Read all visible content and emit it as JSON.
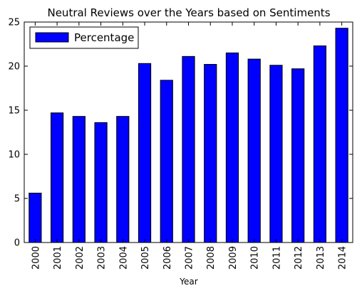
{
  "chart_data": {
    "type": "bar",
    "title": "Neutral Reviews over the Years based on Sentiments",
    "xlabel": "Year",
    "ylabel": "",
    "categories": [
      "2000",
      "2001",
      "2002",
      "2003",
      "2004",
      "2005",
      "2006",
      "2007",
      "2008",
      "2009",
      "2010",
      "2011",
      "2012",
      "2013",
      "2014"
    ],
    "series": [
      {
        "name": "Percentage",
        "color": "#0000ff",
        "values": [
          5.6,
          14.7,
          14.3,
          13.6,
          14.3,
          20.3,
          18.4,
          21.1,
          20.2,
          21.5,
          20.8,
          20.1,
          19.7,
          22.3,
          24.3
        ]
      }
    ],
    "ylim": [
      0,
      25
    ],
    "yticks": [
      "0",
      "5",
      "10",
      "15",
      "20",
      "25"
    ],
    "grid": false,
    "legend": "top-left"
  }
}
